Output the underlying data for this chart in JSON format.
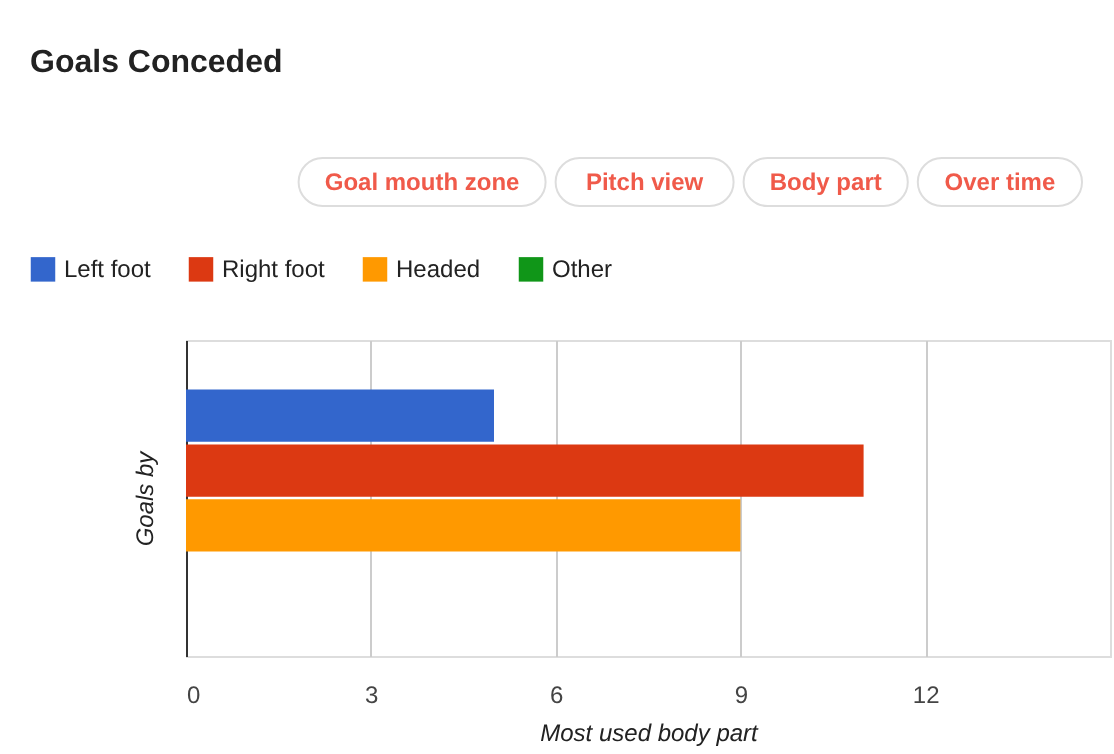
{
  "chart_data": {
    "type": "bar",
    "orientation": "horizontal",
    "title": "Goals Conceded",
    "annotations": [
      "Goal mouth zone",
      "Pitch view",
      "Body part",
      "Over time"
    ],
    "categories": [
      null
    ],
    "xlabel": "Most used body part",
    "ylabel": "Goals by",
    "series": [
      {
        "name": "Left foot",
        "color": "#3366cc",
        "values": [
          5
        ]
      },
      {
        "name": "Right foot",
        "color": "#dc3912",
        "values": [
          11
        ]
      },
      {
        "name": "Headed",
        "color": "#ff9900",
        "values": [
          9
        ]
      },
      {
        "name": "Other",
        "color": "#109618",
        "values": [
          0
        ]
      }
    ],
    "xlim": [
      0,
      15
    ],
    "xticks": [
      0,
      3,
      6,
      9,
      12
    ],
    "grid": "x",
    "legend": "top left"
  }
}
